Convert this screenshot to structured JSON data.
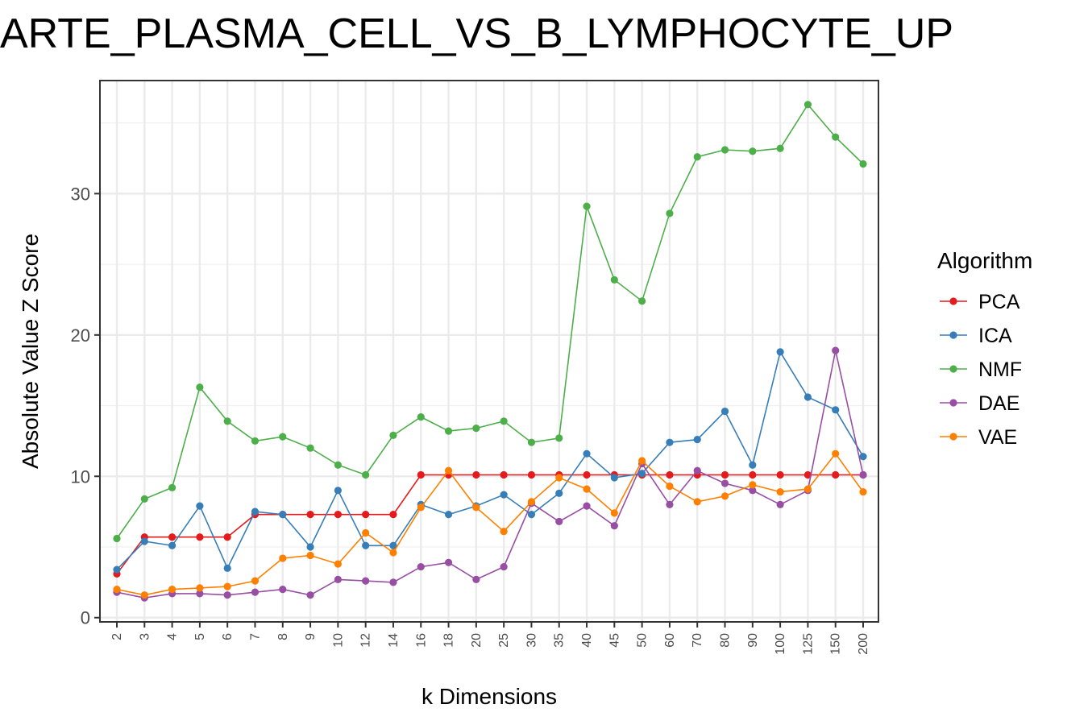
{
  "chart_data": {
    "type": "line",
    "title": "ARTE_PLASMA_CELL_VS_B_LYMPHOCYTE_UP",
    "xlabel": "k Dimensions",
    "ylabel": "Absolute Value Z Score",
    "categories": [
      "2",
      "3",
      "4",
      "5",
      "6",
      "7",
      "8",
      "9",
      "10",
      "12",
      "14",
      "16",
      "18",
      "20",
      "25",
      "30",
      "35",
      "40",
      "45",
      "50",
      "60",
      "70",
      "80",
      "90",
      "100",
      "125",
      "150",
      "200"
    ],
    "y_ticks": [
      0,
      10,
      20,
      30
    ],
    "ylim": [
      -0.3,
      38
    ],
    "grid": true,
    "legend": {
      "title": "Algorithm",
      "placement": "right"
    },
    "series": [
      {
        "name": "PCA",
        "color": "#e41a1c",
        "values": [
          3.1,
          5.7,
          5.7,
          5.7,
          5.7,
          7.3,
          7.3,
          7.3,
          7.3,
          7.3,
          7.3,
          10.1,
          10.1,
          10.1,
          10.1,
          10.1,
          10.1,
          10.1,
          10.1,
          10.1,
          10.1,
          10.1,
          10.1,
          10.1,
          10.1,
          10.1,
          10.1,
          10.1
        ]
      },
      {
        "name": "ICA",
        "color": "#377eb8",
        "values": [
          3.4,
          5.4,
          5.1,
          7.9,
          3.5,
          7.5,
          7.3,
          5.0,
          9.0,
          5.1,
          5.1,
          8.0,
          7.3,
          7.9,
          8.7,
          7.3,
          8.8,
          11.6,
          9.9,
          10.2,
          12.4,
          12.6,
          14.6,
          10.8,
          18.8,
          15.6,
          14.7,
          11.4
        ]
      },
      {
        "name": "NMF",
        "color": "#4daf4a",
        "values": [
          5.6,
          8.4,
          9.2,
          16.3,
          13.9,
          12.5,
          12.8,
          12.0,
          10.8,
          10.1,
          12.9,
          14.2,
          13.2,
          13.4,
          13.9,
          12.4,
          12.7,
          29.1,
          23.9,
          22.4,
          28.6,
          32.6,
          33.1,
          33.0,
          33.2,
          36.3,
          34.0,
          32.1
        ]
      },
      {
        "name": "DAE",
        "color": "#984ea3",
        "values": [
          1.8,
          1.4,
          1.7,
          1.7,
          1.6,
          1.8,
          2.0,
          1.6,
          2.7,
          2.6,
          2.5,
          3.6,
          3.9,
          2.7,
          3.6,
          8.1,
          6.8,
          7.9,
          6.5,
          10.9,
          8.0,
          10.4,
          9.5,
          9.0,
          8.0,
          9.0,
          18.9,
          10.1
        ]
      },
      {
        "name": "VAE",
        "color": "#ff7f00",
        "values": [
          2.0,
          1.6,
          2.0,
          2.1,
          2.2,
          2.6,
          4.2,
          4.4,
          3.8,
          6.0,
          4.6,
          7.8,
          10.4,
          7.8,
          6.1,
          8.2,
          9.9,
          9.1,
          7.4,
          11.1,
          9.3,
          8.2,
          8.6,
          9.4,
          8.9,
          9.1,
          11.6,
          8.9
        ]
      }
    ]
  }
}
